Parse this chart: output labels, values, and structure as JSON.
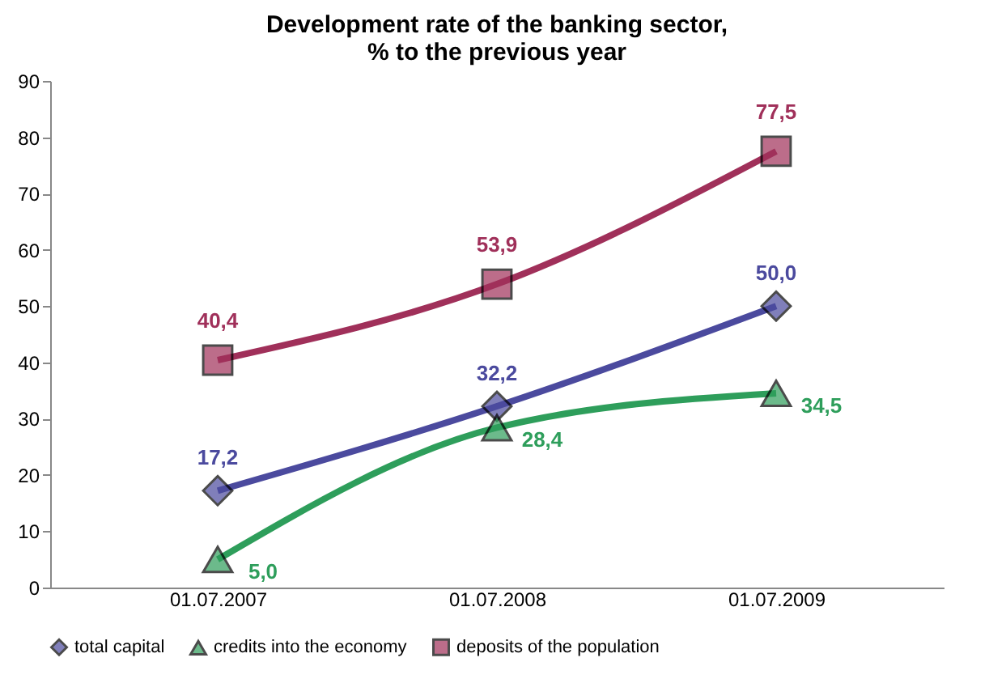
{
  "chart_data": {
    "type": "line",
    "title": "Development rate of the banking sector,\n% to the previous year",
    "categories": [
      "01.07.2007",
      "01.07.2008",
      "01.07.2009"
    ],
    "series": [
      {
        "name": "total capital",
        "color": "#4b4a9e",
        "marker": "diamond",
        "values": [
          17.2,
          32.2,
          50.0
        ],
        "value_labels": [
          "17,2",
          "32,2",
          "50,0"
        ]
      },
      {
        "name": "credits into the economy",
        "color": "#2e9e5b",
        "marker": "triangle",
        "values": [
          5.0,
          28.4,
          34.5
        ],
        "value_labels": [
          "5,0",
          "28,4",
          "34,5"
        ]
      },
      {
        "name": "deposits of the population",
        "color": "#a0305a",
        "marker": "square",
        "values": [
          40.4,
          53.9,
          77.5
        ],
        "value_labels": [
          "40,4",
          "53,9",
          "77,5"
        ]
      }
    ],
    "ylim": [
      0,
      90
    ],
    "yticks": [
      0,
      10,
      20,
      30,
      40,
      50,
      60,
      70,
      80,
      90
    ],
    "grid": false,
    "legend": "bottom"
  }
}
